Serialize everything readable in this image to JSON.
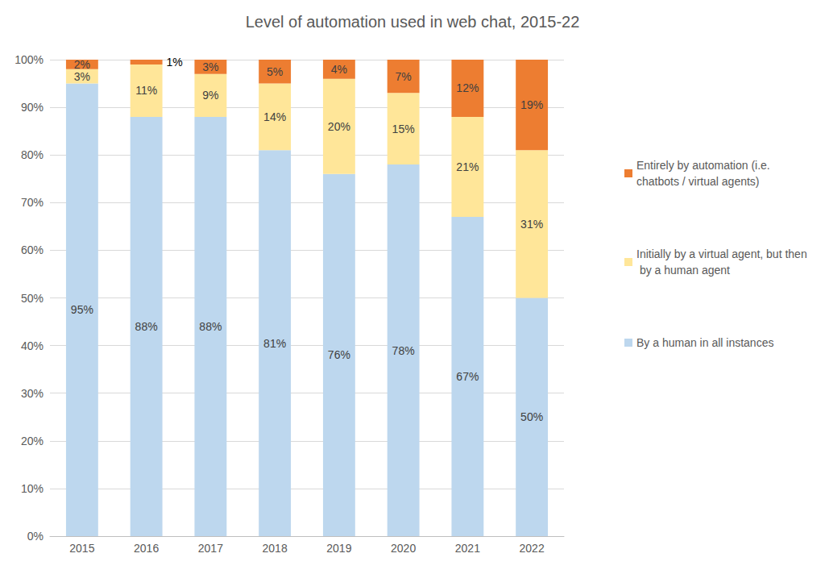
{
  "chart_data": {
    "type": "bar",
    "title": "Level of automation used in web chat, 2015-22",
    "categories": [
      "2015",
      "2016",
      "2017",
      "2018",
      "2019",
      "2020",
      "2021",
      "2022"
    ],
    "series": [
      {
        "name": "By a human in all instances",
        "color": "#bdd7ee",
        "values": [
          95,
          88,
          88,
          81,
          76,
          78,
          67,
          50
        ],
        "value_labels": [
          "95%",
          "88%",
          "88%",
          "81%",
          "76%",
          "78%",
          "67%",
          "50%"
        ]
      },
      {
        "name": "Initially by a virtual agent, but then by a human agent",
        "color": "#ffe699",
        "values": [
          3,
          11,
          9,
          14,
          20,
          15,
          21,
          31
        ],
        "value_labels": [
          "3%",
          "11%",
          "9%",
          "14%",
          "20%",
          "15%",
          "21%",
          "31%"
        ]
      },
      {
        "name": "Entirely by automation (i.e. chatbots / virtual agents)",
        "color": "#ed7d31",
        "values": [
          2,
          1,
          3,
          5,
          4,
          7,
          12,
          19
        ],
        "value_labels": [
          "2%",
          "1%",
          "3%",
          "5%",
          "4%",
          "7%",
          "12%",
          "19%"
        ]
      }
    ],
    "ylim": [
      0,
      100
    ],
    "yticks": [
      {
        "value": 0,
        "label": "0%"
      },
      {
        "value": 10,
        "label": "10%"
      },
      {
        "value": 20,
        "label": "20%"
      },
      {
        "value": 30,
        "label": "30%"
      },
      {
        "value": 40,
        "label": "40%"
      },
      {
        "value": 50,
        "label": "50%"
      },
      {
        "value": 60,
        "label": "60%"
      },
      {
        "value": 70,
        "label": "70%"
      },
      {
        "value": 80,
        "label": "80%"
      },
      {
        "value": 90,
        "label": "90%"
      },
      {
        "value": 100,
        "label": "100%"
      }
    ],
    "stacked": true,
    "data_labels": true,
    "grid": true,
    "legend": "right"
  }
}
